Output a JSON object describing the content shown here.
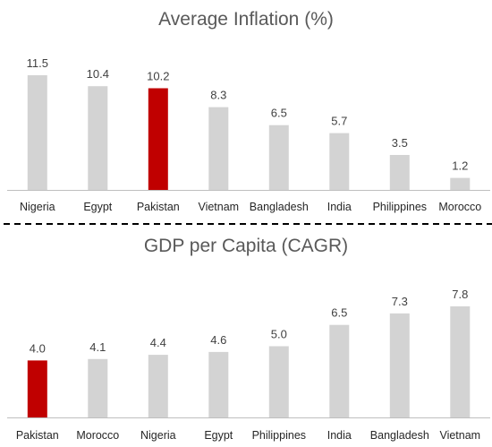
{
  "chart_data": [
    {
      "type": "bar",
      "title": "Average Inflation (%)",
      "categories": [
        "Nigeria",
        "Egypt",
        "Pakistan",
        "Vietnam",
        "Bangladesh",
        "India",
        "Philippines",
        "Morocco"
      ],
      "values": [
        11.5,
        10.4,
        10.2,
        8.3,
        6.5,
        5.7,
        3.5,
        1.2
      ],
      "value_labels": [
        "11.5",
        "10.4",
        "10.2",
        "8.3",
        "6.5",
        "5.7",
        "3.5",
        "1.2"
      ],
      "highlight": "Pakistan",
      "ylim": [
        0,
        11.5
      ],
      "grid": false,
      "legend": "none"
    },
    {
      "type": "bar",
      "title": "GDP per Capita (CAGR)",
      "categories": [
        "Pakistan",
        "Morocco",
        "Nigeria",
        "Egypt",
        "Philippines",
        "India",
        "Bangladesh",
        "Vietnam"
      ],
      "values": [
        4.0,
        4.1,
        4.4,
        4.6,
        5.0,
        6.5,
        7.3,
        7.8
      ],
      "value_labels": [
        "4.0",
        "4.1",
        "4.4",
        "4.6",
        "5.0",
        "6.5",
        "7.3",
        "7.8"
      ],
      "highlight": "Pakistan",
      "ylim": [
        0,
        7.8
      ],
      "grid": false,
      "legend": "none"
    }
  ],
  "colors": {
    "bar": "#d3d3d3",
    "highlight": "#c00000",
    "axis": "#bfbfbf",
    "divider": "#000000",
    "title": "#595959",
    "data_label": "#404040",
    "tick_label": "#262626"
  }
}
